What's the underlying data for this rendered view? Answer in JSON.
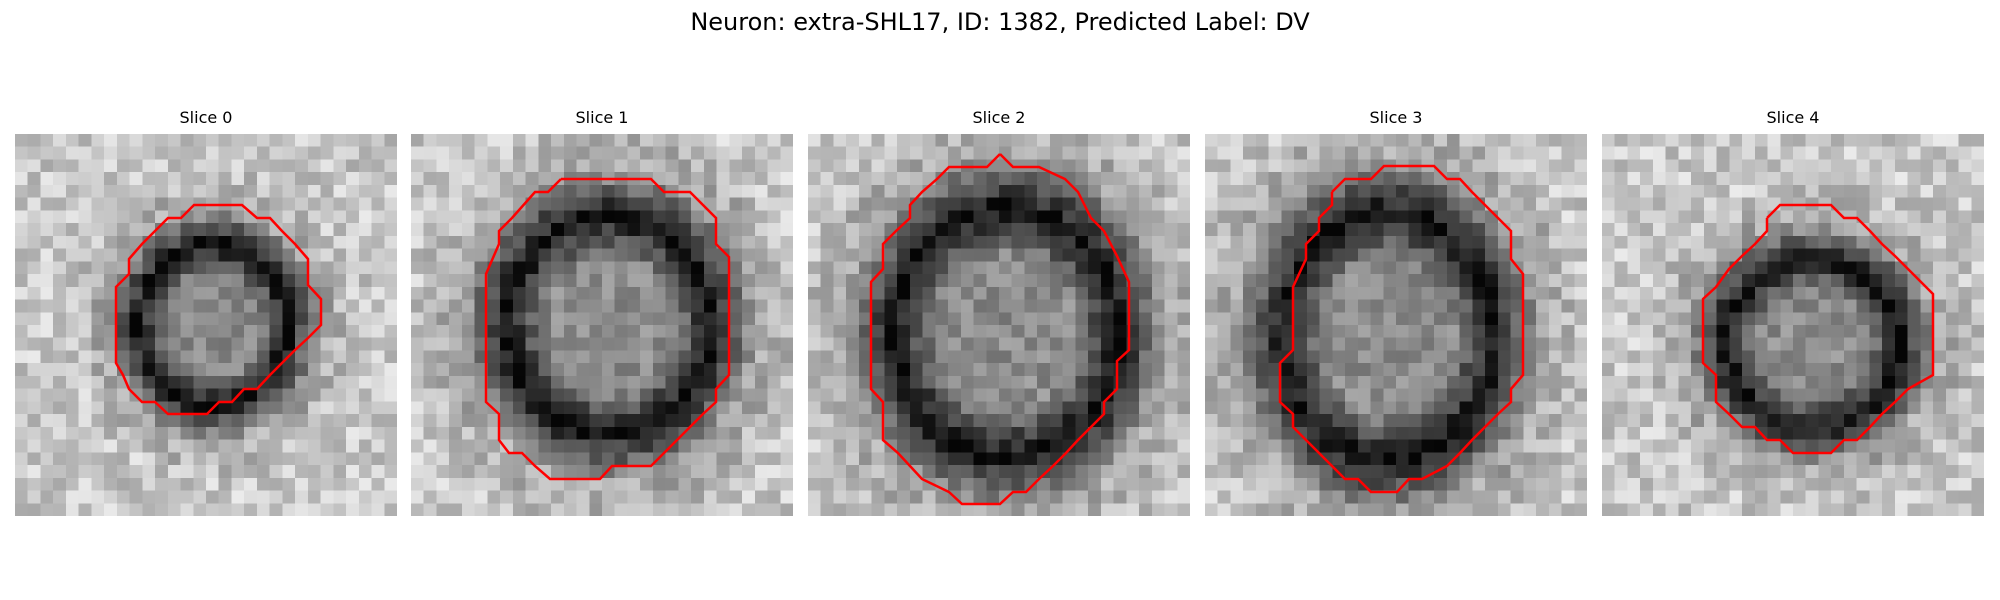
{
  "figure": {
    "title": "Neuron: extra-SHL17, ID: 1382, Predicted Label: DV"
  },
  "slices": [
    {
      "title": "Slice 0"
    },
    {
      "title": "Slice 1"
    },
    {
      "title": "Slice 2"
    },
    {
      "title": "Slice 3"
    },
    {
      "title": "Slice 4"
    }
  ],
  "colors": {
    "contour": "#ff0000",
    "background": "#ffffff"
  }
}
